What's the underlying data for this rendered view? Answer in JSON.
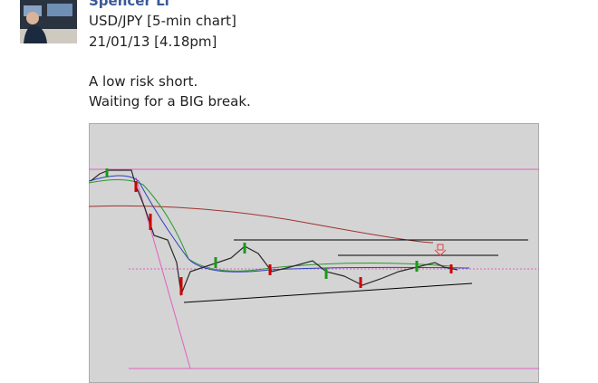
{
  "post": {
    "author": "Spencer Li",
    "lines": [
      "USD/JPY [5-min chart]",
      "21/01/13 [4.18pm]"
    ],
    "body": [
      "A low risk short.",
      "Waiting for a BIG break."
    ]
  }
}
